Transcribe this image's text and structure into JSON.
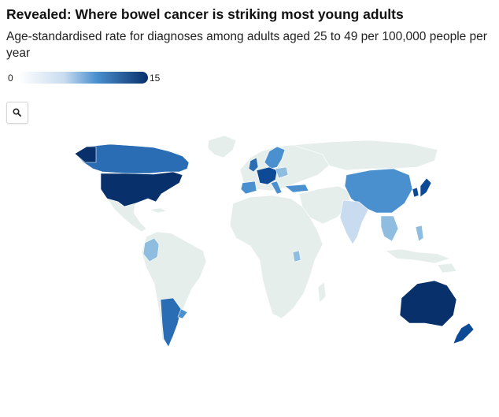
{
  "header": {
    "title": "Revealed: Where bowel cancer is striking most young adults",
    "subtitle": "Age-standardised rate for diagnoses among adults aged 25 to 49 per 100,000 people per year"
  },
  "legend": {
    "min_label": "0",
    "max_label": "15",
    "color_low": "#ffffff",
    "color_high": "#08306b"
  },
  "controls": {
    "zoom_icon": "magnifier-icon"
  },
  "colors": {
    "no_data": "#e6eeec",
    "level_1": "#c9dcef",
    "level_2": "#8fbde0",
    "level_3": "#4a90cf",
    "level_4": "#2a6db5",
    "level_5": "#0d4a96",
    "level_6": "#08306b"
  }
}
